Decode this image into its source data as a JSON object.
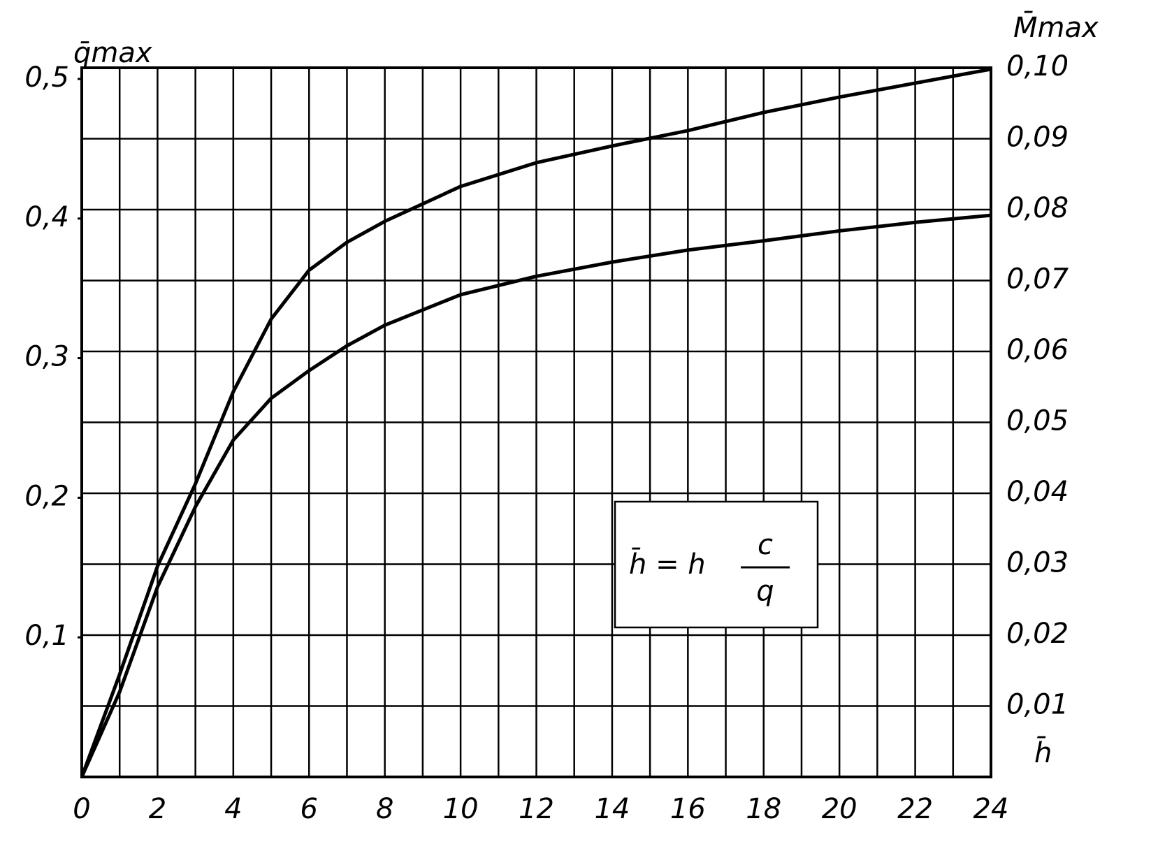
{
  "chart_data": {
    "type": "line",
    "y_label": "q̄max",
    "y2_label": "M̄max",
    "x_label": "h̄",
    "annotation": {
      "lhs": "h̄ = h",
      "numerator": "c",
      "denominator": "q"
    },
    "x": [
      0,
      1,
      2,
      3,
      4,
      5,
      6,
      7,
      8,
      10,
      12,
      14,
      16,
      18,
      20,
      22,
      24
    ],
    "series": [
      {
        "name": "q̄max",
        "color": "#000000",
        "axis": "y",
        "values": [
          0,
          0.0735,
          0.151,
          0.21,
          0.276,
          0.328,
          0.363,
          0.383,
          0.398,
          0.423,
          0.44,
          0.452,
          0.463,
          0.476,
          0.487,
          0.497,
          0.507
        ]
      },
      {
        "name": "M̄max",
        "color": "#000000",
        "axis": "y2",
        "values": [
          0,
          0.012,
          0.0268,
          0.0381,
          0.0475,
          0.0534,
          0.0573,
          0.0608,
          0.0637,
          0.068,
          0.0706,
          0.0726,
          0.0743,
          0.0756,
          0.077,
          0.0782,
          0.0792
        ]
      }
    ],
    "xlim": [
      0,
      24
    ],
    "xticks": [
      0,
      2,
      4,
      6,
      8,
      10,
      12,
      14,
      16,
      18,
      20,
      22,
      24
    ],
    "ylim": [
      0,
      0.508
    ],
    "yticks": [
      {
        "value": 0.1,
        "label": "0,1"
      },
      {
        "value": 0.2,
        "label": "0,2"
      },
      {
        "value": 0.3,
        "label": "0,3"
      },
      {
        "value": 0.4,
        "label": "0,4"
      },
      {
        "value": 0.5,
        "label": "0,5"
      }
    ],
    "y2lim": [
      0,
      0.1
    ],
    "y2ticks": [
      {
        "value": 0.01,
        "label": "0,01"
      },
      {
        "value": 0.02,
        "label": "0,02"
      },
      {
        "value": 0.03,
        "label": "0,03"
      },
      {
        "value": 0.04,
        "label": "0,04"
      },
      {
        "value": 0.05,
        "label": "0,05"
      },
      {
        "value": 0.06,
        "label": "0,06"
      },
      {
        "value": 0.07,
        "label": "0,07"
      },
      {
        "value": 0.08,
        "label": "0,08"
      },
      {
        "value": 0.09,
        "label": "0,09"
      },
      {
        "value": 0.1,
        "label": "0,10"
      }
    ],
    "grid": true
  }
}
